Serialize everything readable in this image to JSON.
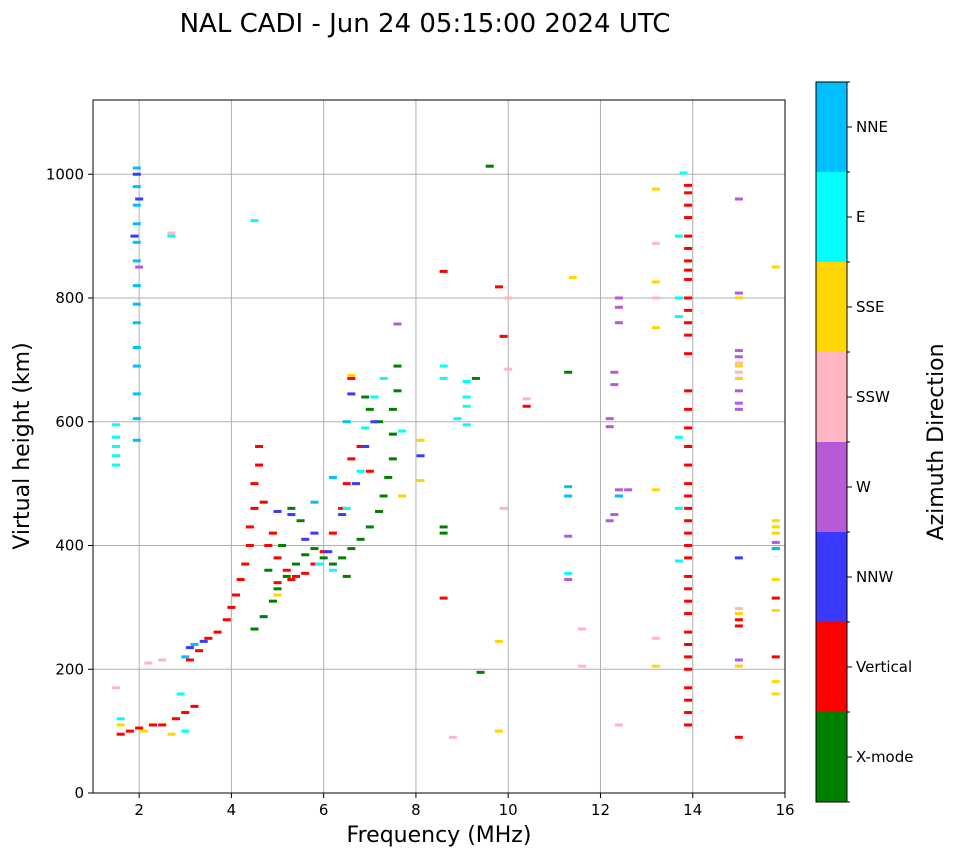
{
  "chart_data": {
    "type": "scatter",
    "title": "NAL CADI - Jun 24 05:15:00 2024 UTC",
    "xlabel": "Frequency (MHz)",
    "ylabel": "Virtual height (km)",
    "xlim": [
      1,
      16
    ],
    "ylim": [
      0,
      1120
    ],
    "xticks": [
      2,
      4,
      6,
      8,
      10,
      12,
      14,
      16
    ],
    "yticks": [
      0,
      200,
      400,
      600,
      800,
      1000
    ],
    "grid": true,
    "colorbar": {
      "title": "Azimuth Direction",
      "categories": [
        {
          "label": "X-mode",
          "color": "#008000"
        },
        {
          "label": "Vertical",
          "color": "#ff0000"
        },
        {
          "label": "NNW",
          "color": "#3a3aff"
        },
        {
          "label": "W",
          "color": "#b65ad6"
        },
        {
          "label": "SSW",
          "color": "#ffb6c1"
        },
        {
          "label": "SSE",
          "color": "#ffd700"
        },
        {
          "label": "E",
          "color": "#00ffff"
        },
        {
          "label": "NNE",
          "color": "#00bfff"
        }
      ]
    },
    "series": [
      {
        "name": "X-mode",
        "points": [
          [
            4.5,
            265
          ],
          [
            4.7,
            285
          ],
          [
            4.9,
            310
          ],
          [
            5.0,
            330
          ],
          [
            5.2,
            350
          ],
          [
            5.4,
            370
          ],
          [
            5.6,
            385
          ],
          [
            5.8,
            395
          ],
          [
            6.0,
            380
          ],
          [
            6.2,
            370
          ],
          [
            6.4,
            380
          ],
          [
            6.6,
            395
          ],
          [
            6.8,
            410
          ],
          [
            7.0,
            430
          ],
          [
            7.2,
            455
          ],
          [
            7.3,
            480
          ],
          [
            7.4,
            510
          ],
          [
            7.5,
            540
          ],
          [
            7.5,
            580
          ],
          [
            7.5,
            620
          ],
          [
            7.6,
            650
          ],
          [
            7.6,
            690
          ],
          [
            7.2,
            600
          ],
          [
            6.9,
            640
          ],
          [
            5.3,
            460
          ],
          [
            5.5,
            440
          ],
          [
            5.1,
            400
          ],
          [
            4.8,
            360
          ],
          [
            7.0,
            620
          ],
          [
            6.5,
            350
          ],
          [
            8.6,
            420
          ],
          [
            8.6,
            430
          ],
          [
            9.4,
            195
          ],
          [
            9.6,
            1013
          ],
          [
            11.3,
            680
          ],
          [
            9.3,
            670
          ]
        ]
      },
      {
        "name": "Vertical",
        "points": [
          [
            1.6,
            95
          ],
          [
            1.8,
            100
          ],
          [
            2.0,
            105
          ],
          [
            2.3,
            110
          ],
          [
            2.5,
            110
          ],
          [
            2.8,
            120
          ],
          [
            3.0,
            130
          ],
          [
            3.2,
            140
          ],
          [
            3.1,
            215
          ],
          [
            3.3,
            230
          ],
          [
            3.5,
            250
          ],
          [
            3.7,
            260
          ],
          [
            3.9,
            280
          ],
          [
            4.0,
            300
          ],
          [
            4.1,
            320
          ],
          [
            4.2,
            345
          ],
          [
            4.3,
            370
          ],
          [
            4.4,
            400
          ],
          [
            4.4,
            430
          ],
          [
            4.5,
            460
          ],
          [
            4.5,
            500
          ],
          [
            4.6,
            530
          ],
          [
            4.6,
            560
          ],
          [
            4.8,
            400
          ],
          [
            5.0,
            380
          ],
          [
            5.2,
            360
          ],
          [
            5.4,
            350
          ],
          [
            5.6,
            355
          ],
          [
            5.8,
            370
          ],
          [
            6.0,
            390
          ],
          [
            6.2,
            420
          ],
          [
            6.4,
            460
          ],
          [
            6.5,
            500
          ],
          [
            6.6,
            540
          ],
          [
            6.8,
            560
          ],
          [
            6.6,
            670
          ],
          [
            7.0,
            520
          ],
          [
            5.0,
            340
          ],
          [
            5.3,
            345
          ],
          [
            4.7,
            470
          ],
          [
            4.9,
            420
          ],
          [
            8.6,
            315
          ],
          [
            8.6,
            843
          ],
          [
            9.8,
            818
          ],
          [
            9.9,
            738
          ],
          [
            10.4,
            625
          ],
          [
            13.9,
            110
          ],
          [
            13.9,
            130
          ],
          [
            13.9,
            150
          ],
          [
            13.9,
            170
          ],
          [
            13.9,
            200
          ],
          [
            13.9,
            220
          ],
          [
            13.9,
            240
          ],
          [
            13.9,
            260
          ],
          [
            13.9,
            290
          ],
          [
            13.9,
            310
          ],
          [
            13.9,
            330
          ],
          [
            13.9,
            350
          ],
          [
            13.9,
            380
          ],
          [
            13.9,
            400
          ],
          [
            13.9,
            420
          ],
          [
            13.9,
            440
          ],
          [
            13.9,
            460
          ],
          [
            13.9,
            480
          ],
          [
            13.9,
            500
          ],
          [
            13.9,
            530
          ],
          [
            13.9,
            560
          ],
          [
            13.9,
            590
          ],
          [
            13.9,
            620
          ],
          [
            13.9,
            650
          ],
          [
            13.9,
            710
          ],
          [
            13.9,
            740
          ],
          [
            13.9,
            760
          ],
          [
            13.9,
            780
          ],
          [
            13.9,
            800
          ],
          [
            13.9,
            830
          ],
          [
            13.9,
            845
          ],
          [
            13.9,
            860
          ],
          [
            13.9,
            880
          ],
          [
            13.9,
            900
          ],
          [
            13.9,
            930
          ],
          [
            13.9,
            950
          ],
          [
            13.9,
            970
          ],
          [
            13.9,
            982
          ],
          [
            15.0,
            90
          ],
          [
            15.0,
            270
          ],
          [
            15.0,
            280
          ],
          [
            15.8,
            220
          ],
          [
            15.8,
            315
          ]
        ]
      },
      {
        "name": "NNW",
        "points": [
          [
            1.9,
            900
          ],
          [
            2.0,
            960
          ],
          [
            1.95,
            1000
          ],
          [
            3.1,
            235
          ],
          [
            3.4,
            245
          ],
          [
            5.0,
            455
          ],
          [
            5.3,
            450
          ],
          [
            5.6,
            410
          ],
          [
            5.8,
            420
          ],
          [
            6.1,
            390
          ],
          [
            6.4,
            450
          ],
          [
            6.7,
            500
          ],
          [
            6.9,
            560
          ],
          [
            7.1,
            600
          ],
          [
            6.6,
            645
          ],
          [
            8.1,
            545
          ],
          [
            12.4,
            480
          ],
          [
            15.0,
            380
          ],
          [
            15.8,
            395
          ]
        ]
      },
      {
        "name": "W",
        "points": [
          [
            12.2,
            440
          ],
          [
            12.3,
            450
          ],
          [
            12.4,
            490
          ],
          [
            12.6,
            490
          ],
          [
            12.3,
            660
          ],
          [
            12.3,
            680
          ],
          [
            12.4,
            760
          ],
          [
            12.4,
            785
          ],
          [
            12.4,
            800
          ],
          [
            15.0,
            215
          ],
          [
            15.0,
            620
          ],
          [
            15.0,
            630
          ],
          [
            15.0,
            650
          ],
          [
            15.0,
            705
          ],
          [
            15.0,
            715
          ],
          [
            15.0,
            808
          ],
          [
            15.0,
            960
          ],
          [
            15.8,
            405
          ],
          [
            11.3,
            415
          ],
          [
            11.3,
            345
          ],
          [
            12.2,
            592
          ],
          [
            12.2,
            605
          ],
          [
            7.6,
            758
          ],
          [
            2.0,
            850
          ]
        ]
      },
      {
        "name": "SSW",
        "points": [
          [
            1.5,
            170
          ],
          [
            2.2,
            210
          ],
          [
            2.5,
            215
          ],
          [
            2.7,
            905
          ],
          [
            8.8,
            90
          ],
          [
            10.4,
            637
          ],
          [
            10.0,
            800
          ],
          [
            10.0,
            685
          ],
          [
            9.9,
            460
          ],
          [
            11.6,
            265
          ],
          [
            11.6,
            205
          ],
          [
            12.4,
            110
          ],
          [
            13.2,
            250
          ],
          [
            13.2,
            800
          ],
          [
            13.2,
            888
          ],
          [
            15.0,
            680
          ],
          [
            15.0,
            695
          ],
          [
            15.0,
            298
          ]
        ]
      },
      {
        "name": "SSE",
        "points": [
          [
            1.6,
            110
          ],
          [
            2.1,
            100
          ],
          [
            2.7,
            95
          ],
          [
            5.0,
            320
          ],
          [
            6.6,
            675
          ],
          [
            7.7,
            480
          ],
          [
            8.1,
            505
          ],
          [
            8.1,
            570
          ],
          [
            9.8,
            100
          ],
          [
            9.8,
            245
          ],
          [
            11.4,
            833
          ],
          [
            13.2,
            205
          ],
          [
            13.2,
            490
          ],
          [
            13.2,
            752
          ],
          [
            13.2,
            826
          ],
          [
            13.2,
            976
          ],
          [
            15.0,
            205
          ],
          [
            15.0,
            290
          ],
          [
            15.0,
            670
          ],
          [
            15.0,
            690
          ],
          [
            15.0,
            800
          ],
          [
            15.8,
            160
          ],
          [
            15.8,
            180
          ],
          [
            15.8,
            295
          ],
          [
            15.8,
            345
          ],
          [
            15.8,
            420
          ],
          [
            15.8,
            430
          ],
          [
            15.8,
            440
          ],
          [
            15.8,
            850
          ]
        ]
      },
      {
        "name": "E",
        "points": [
          [
            1.5,
            530
          ],
          [
            1.5,
            545
          ],
          [
            1.5,
            560
          ],
          [
            1.5,
            575
          ],
          [
            1.5,
            595
          ],
          [
            1.6,
            120
          ],
          [
            2.9,
            160
          ],
          [
            3.0,
            100
          ],
          [
            2.7,
            900
          ],
          [
            4.5,
            925
          ],
          [
            6.5,
            460
          ],
          [
            6.8,
            520
          ],
          [
            6.9,
            590
          ],
          [
            7.1,
            640
          ],
          [
            7.3,
            670
          ],
          [
            7.7,
            585
          ],
          [
            5.9,
            370
          ],
          [
            6.2,
            360
          ],
          [
            8.6,
            670
          ],
          [
            8.6,
            690
          ],
          [
            8.9,
            605
          ],
          [
            9.1,
            595
          ],
          [
            9.1,
            625
          ],
          [
            9.1,
            640
          ],
          [
            9.1,
            665
          ],
          [
            13.7,
            375
          ],
          [
            13.7,
            460
          ],
          [
            13.7,
            575
          ],
          [
            13.7,
            770
          ],
          [
            13.7,
            800
          ],
          [
            13.7,
            900
          ],
          [
            13.8,
            1002
          ],
          [
            11.3,
            355
          ]
        ]
      },
      {
        "name": "NNE",
        "points": [
          [
            1.95,
            570
          ],
          [
            1.95,
            605
          ],
          [
            1.95,
            645
          ],
          [
            1.95,
            690
          ],
          [
            1.95,
            720
          ],
          [
            1.95,
            760
          ],
          [
            1.95,
            790
          ],
          [
            1.95,
            820
          ],
          [
            1.95,
            860
          ],
          [
            1.95,
            890
          ],
          [
            1.95,
            920
          ],
          [
            1.95,
            950
          ],
          [
            1.95,
            980
          ],
          [
            1.95,
            1010
          ],
          [
            3.0,
            220
          ],
          [
            3.2,
            240
          ],
          [
            5.8,
            470
          ],
          [
            6.2,
            510
          ],
          [
            6.5,
            600
          ],
          [
            11.3,
            480
          ],
          [
            11.3,
            495
          ],
          [
            12.4,
            480
          ],
          [
            15.8,
            395
          ]
        ]
      }
    ]
  }
}
